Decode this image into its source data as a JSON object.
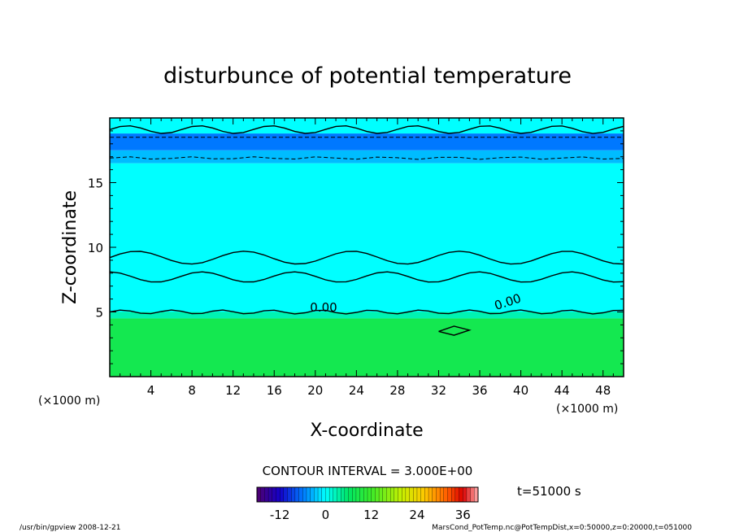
{
  "chart_data": {
    "type": "heatmap",
    "title": "disturbunce of potential temperature",
    "xlabel": "X-coordinate",
    "ylabel": "Z-coordinate",
    "x_unit": "(×1000 m)",
    "y_unit": "(×1000 m)",
    "xlim": [
      0,
      50
    ],
    "ylim": [
      0,
      20
    ],
    "x_ticks": [
      "4",
      "8",
      "12",
      "16",
      "20",
      "24",
      "28",
      "32",
      "36",
      "40",
      "44",
      "48"
    ],
    "y_ticks": [
      "5",
      "10",
      "15"
    ],
    "contour_interval": "CONTOUR INTERVAL = 3.000E+00",
    "contour_labels": [
      "0.00",
      "0.00"
    ],
    "time_label": "t=51000 s",
    "colorbar": {
      "min": -18,
      "max": 40,
      "tick_labels": [
        "-12",
        "0",
        "12",
        "24",
        "36"
      ],
      "tick_values": [
        -12,
        0,
        12,
        24,
        36
      ]
    },
    "bands": [
      {
        "z_from": 0,
        "z_to": 4.5,
        "value": 8
      },
      {
        "z_from": 4.5,
        "z_to": 5.0,
        "value": 3
      },
      {
        "z_from": 5.0,
        "z_to": 16.5,
        "value": 0
      },
      {
        "z_from": 16.5,
        "z_to": 17.5,
        "value": -3
      },
      {
        "z_from": 17.5,
        "z_to": 18.8,
        "value": -6
      },
      {
        "z_from": 18.8,
        "z_to": 20,
        "value": 0
      }
    ]
  },
  "footer": {
    "program": "/usr/bin/gpview   2008-12-21",
    "source": "MarsCond_PotTemp.nc@PotTempDist,x=0:50000,z=0:20000,t=051000"
  }
}
